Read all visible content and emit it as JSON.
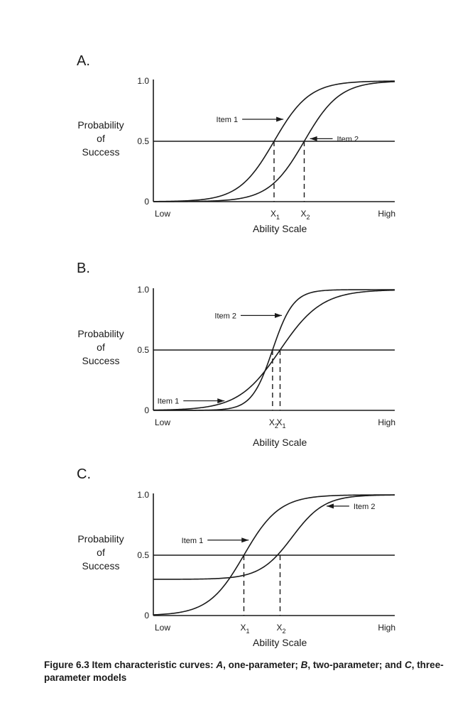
{
  "chart_data": [
    {
      "type": "line",
      "panel_label": "A.",
      "ylabel": [
        "Probability",
        "of",
        "Success"
      ],
      "xlabel": "Ability Scale",
      "x_tick_low": "Low",
      "x_tick_high": "High",
      "y_ticks": [
        "0",
        "0.5",
        "1.0"
      ],
      "ylim": [
        0,
        1
      ],
      "xlim": [
        -4,
        4
      ],
      "reference_line": 0.5,
      "series": [
        {
          "name": "Item 1",
          "model": "1PL",
          "a": 1.0,
          "b": 0.0,
          "c": 0.0
        },
        {
          "name": "Item 2",
          "model": "1PL",
          "a": 1.0,
          "b": 1.0,
          "c": 0.0
        }
      ],
      "markers": [
        {
          "label": "X",
          "sub": "1",
          "x": 0.0
        },
        {
          "label": "X",
          "sub": "2",
          "x": 1.0
        }
      ],
      "annotations": [
        {
          "text": "Item 1",
          "series": 0,
          "at_x": 0.45,
          "side": "left"
        },
        {
          "text": "Item 2",
          "series": 1,
          "at_x": 1.05,
          "side": "right"
        }
      ]
    },
    {
      "type": "line",
      "panel_label": "B.",
      "ylabel": [
        "Probability",
        "of",
        "Success"
      ],
      "xlabel": "Ability Scale",
      "x_tick_low": "Low",
      "x_tick_high": "High",
      "y_ticks": [
        "0",
        "0.5",
        "1.0"
      ],
      "ylim": [
        0,
        1
      ],
      "xlim": [
        -4,
        4
      ],
      "reference_line": 0.5,
      "series": [
        {
          "name": "Item 1",
          "model": "2PL",
          "a": 0.85,
          "b": 0.2,
          "c": 0.0
        },
        {
          "name": "Item 2",
          "model": "2PL",
          "a": 1.7,
          "b": -0.05,
          "c": 0.0
        }
      ],
      "markers": [
        {
          "label": "X",
          "sub": "2",
          "x": -0.05
        },
        {
          "label": "X",
          "sub": "1",
          "x": 0.2
        }
      ],
      "annotations": [
        {
          "text": "Item 2",
          "series": 1,
          "at_x": 0.4,
          "side": "left"
        },
        {
          "text": "Item 1",
          "series": 0,
          "at_x": -1.5,
          "side": "left"
        }
      ]
    },
    {
      "type": "line",
      "panel_label": "C.",
      "ylabel": [
        "Probability",
        "of",
        "Success"
      ],
      "xlabel": "Ability Scale",
      "x_tick_low": "Low",
      "x_tick_high": "High",
      "y_ticks": [
        "0",
        "0.5",
        "1.0"
      ],
      "ylim": [
        0,
        1
      ],
      "xlim": [
        -4,
        4
      ],
      "reference_line": 0.5,
      "series": [
        {
          "name": "Item 1",
          "model": "3PL",
          "a": 1.0,
          "b": -1.0,
          "c": 0.0
        },
        {
          "name": "Item 2",
          "model": "3PL",
          "a": 1.1,
          "b": 0.6,
          "c": 0.3
        }
      ],
      "markers": [
        {
          "label": "X",
          "sub": "1",
          "x": -1.0
        },
        {
          "label": "X",
          "sub": "2",
          "x": 0.2
        }
      ],
      "annotations": [
        {
          "text": "Item 1",
          "series": 0,
          "at_x": -0.7,
          "side": "left"
        },
        {
          "text": "Item 2",
          "series": 1,
          "at_x": 1.6,
          "side": "right"
        }
      ]
    }
  ],
  "caption": {
    "prefix": "Figure 6.3  Item characteristic curves: ",
    "a_letter": "A",
    "a_text": ", one-parameter; ",
    "b_letter": "B",
    "b_text": ", two-parameter; and ",
    "c_letter": "C",
    "c_text": ", three-parameter models"
  }
}
